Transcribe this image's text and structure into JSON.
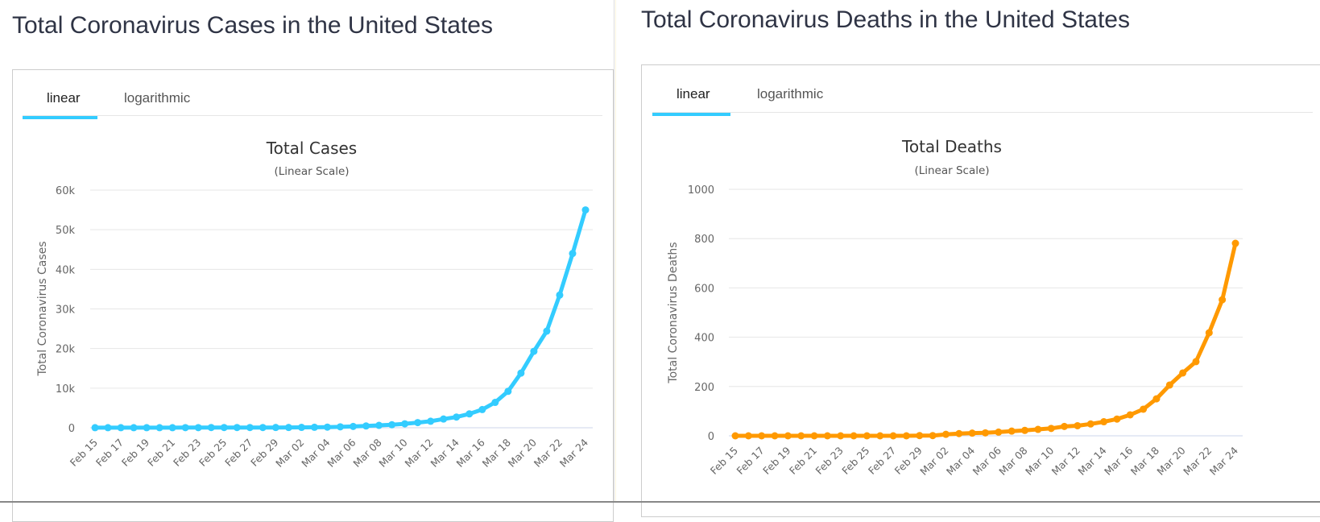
{
  "panels": [
    {
      "heading": "Total Coronavirus Cases in the United States",
      "tabs": [
        {
          "label": "linear",
          "active": true
        },
        {
          "label": "logarithmic",
          "active": false
        }
      ],
      "accent": "#33ccff"
    },
    {
      "heading": "Total Coronavirus Deaths in the United States",
      "tabs": [
        {
          "label": "linear",
          "active": true
        },
        {
          "label": "logarithmic",
          "active": false
        }
      ],
      "accent": "#ff9900"
    }
  ],
  "chart_data": [
    {
      "type": "line",
      "title": "Total Cases",
      "subtitle": "(Linear Scale)",
      "xlabel": "",
      "ylabel": "Total Coronavirus Cases",
      "ylim": [
        0,
        60000
      ],
      "yticks": [
        0,
        10000,
        20000,
        30000,
        40000,
        50000,
        60000
      ],
      "ytick_labels": [
        "0",
        "10k",
        "20k",
        "30k",
        "40k",
        "50k",
        "60k"
      ],
      "x": [
        "Feb 15",
        "Feb 16",
        "Feb 17",
        "Feb 18",
        "Feb 19",
        "Feb 20",
        "Feb 21",
        "Feb 22",
        "Feb 23",
        "Feb 24",
        "Feb 25",
        "Feb 26",
        "Feb 27",
        "Feb 28",
        "Feb 29",
        "Mar 01",
        "Mar 02",
        "Mar 03",
        "Mar 04",
        "Mar 05",
        "Mar 06",
        "Mar 07",
        "Mar 08",
        "Mar 09",
        "Mar 10",
        "Mar 11",
        "Mar 12",
        "Mar 13",
        "Mar 14",
        "Mar 15",
        "Mar 16",
        "Mar 17",
        "Mar 18",
        "Mar 19",
        "Mar 20",
        "Mar 21",
        "Mar 22",
        "Mar 23",
        "Mar 24"
      ],
      "xtick_labels": [
        "Feb 15",
        "Feb 17",
        "Feb 19",
        "Feb 21",
        "Feb 23",
        "Feb 25",
        "Feb 27",
        "Feb 29",
        "Mar 02",
        "Mar 04",
        "Mar 06",
        "Mar 08",
        "Mar 10",
        "Mar 12",
        "Mar 14",
        "Mar 16",
        "Mar 18",
        "Mar 20",
        "Mar 22",
        "Mar 24"
      ],
      "grid": true,
      "color": "#33ccff",
      "series": [
        {
          "name": "Cases",
          "values": [
            15,
            15,
            15,
            15,
            15,
            15,
            15,
            35,
            35,
            53,
            57,
            60,
            60,
            62,
            68,
            75,
            100,
            125,
            160,
            230,
            330,
            450,
            600,
            760,
            1000,
            1300,
            1650,
            2200,
            2700,
            3500,
            4600,
            6400,
            9200,
            13800,
            19300,
            24400,
            33500,
            44000,
            55000
          ]
        }
      ]
    },
    {
      "type": "line",
      "title": "Total Deaths",
      "subtitle": "(Linear Scale)",
      "xlabel": "",
      "ylabel": "Total Coronavirus Deaths",
      "ylim": [
        0,
        1000
      ],
      "yticks": [
        0,
        200,
        400,
        600,
        800,
        1000
      ],
      "ytick_labels": [
        "0",
        "200",
        "400",
        "600",
        "800",
        "1000"
      ],
      "x": [
        "Feb 15",
        "Feb 16",
        "Feb 17",
        "Feb 18",
        "Feb 19",
        "Feb 20",
        "Feb 21",
        "Feb 22",
        "Feb 23",
        "Feb 24",
        "Feb 25",
        "Feb 26",
        "Feb 27",
        "Feb 28",
        "Feb 29",
        "Mar 01",
        "Mar 02",
        "Mar 03",
        "Mar 04",
        "Mar 05",
        "Mar 06",
        "Mar 07",
        "Mar 08",
        "Mar 09",
        "Mar 10",
        "Mar 11",
        "Mar 12",
        "Mar 13",
        "Mar 14",
        "Mar 15",
        "Mar 16",
        "Mar 17",
        "Mar 18",
        "Mar 19",
        "Mar 20",
        "Mar 21",
        "Mar 22",
        "Mar 23",
        "Mar 24"
      ],
      "xtick_labels": [
        "Feb 15",
        "Feb 17",
        "Feb 19",
        "Feb 21",
        "Feb 23",
        "Feb 25",
        "Feb 27",
        "Feb 29",
        "Mar 02",
        "Mar 04",
        "Mar 06",
        "Mar 08",
        "Mar 10",
        "Mar 12",
        "Mar 14",
        "Mar 16",
        "Mar 18",
        "Mar 20",
        "Mar 22",
        "Mar 24"
      ],
      "grid": true,
      "color": "#ff9900",
      "series": [
        {
          "name": "Deaths",
          "values": [
            0,
            0,
            0,
            0,
            0,
            0,
            0,
            0,
            0,
            0,
            0,
            0,
            0,
            0,
            1,
            1,
            6,
            9,
            11,
            12,
            15,
            19,
            22,
            26,
            30,
            38,
            41,
            48,
            57,
            68,
            85,
            108,
            150,
            206,
            255,
            301,
            418,
            552,
            781
          ]
        }
      ]
    }
  ]
}
